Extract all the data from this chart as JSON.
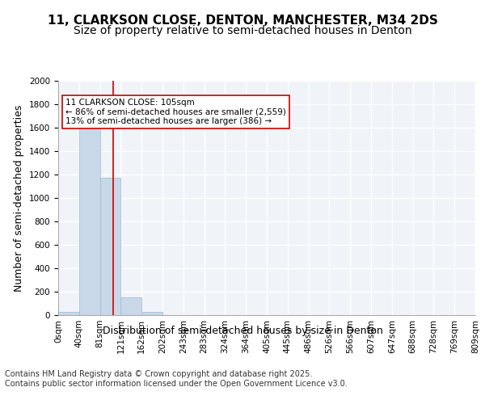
{
  "title": "11, CLARKSON CLOSE, DENTON, MANCHESTER, M34 2DS",
  "subtitle": "Size of property relative to semi-detached houses in Denton",
  "xlabel": "Distribution of semi-detached houses by size in Denton",
  "ylabel": "Number of semi-detached properties",
  "bar_color": "#c8d8e8",
  "bar_edge_color": "#a0b8d0",
  "background_color": "#f0f4f8",
  "grid_color": "#ffffff",
  "vline_color": "#cc0000",
  "vline_x": 2.65,
  "annotation_text": "11 CLARKSON CLOSE: 105sqm\n← 86% of semi-detached houses are smaller (2,559)\n13% of semi-detached houses are larger (386) →",
  "annotation_box_color": "#ffffff",
  "annotation_box_edge": "#cc0000",
  "bin_labels": [
    "0sqm",
    "40sqm",
    "81sqm",
    "121sqm",
    "162sqm",
    "202sqm",
    "243sqm",
    "283sqm",
    "324sqm",
    "364sqm",
    "405sqm",
    "445sqm",
    "486sqm",
    "526sqm",
    "566sqm",
    "607sqm",
    "647sqm",
    "688sqm",
    "728sqm",
    "769sqm",
    "809sqm"
  ],
  "bar_heights": [
    25,
    1620,
    1170,
    155,
    30,
    0,
    0,
    0,
    0,
    0,
    0,
    0,
    0,
    0,
    0,
    0,
    0,
    0,
    0,
    0
  ],
  "ylim": [
    0,
    2000
  ],
  "yticks": [
    0,
    200,
    400,
    600,
    800,
    1000,
    1200,
    1400,
    1600,
    1800,
    2000
  ],
  "footer_text": "Contains HM Land Registry data © Crown copyright and database right 2025.\nContains public sector information licensed under the Open Government Licence v3.0.",
  "title_fontsize": 11,
  "subtitle_fontsize": 10,
  "axis_label_fontsize": 9,
  "tick_fontsize": 7.5,
  "footer_fontsize": 7
}
